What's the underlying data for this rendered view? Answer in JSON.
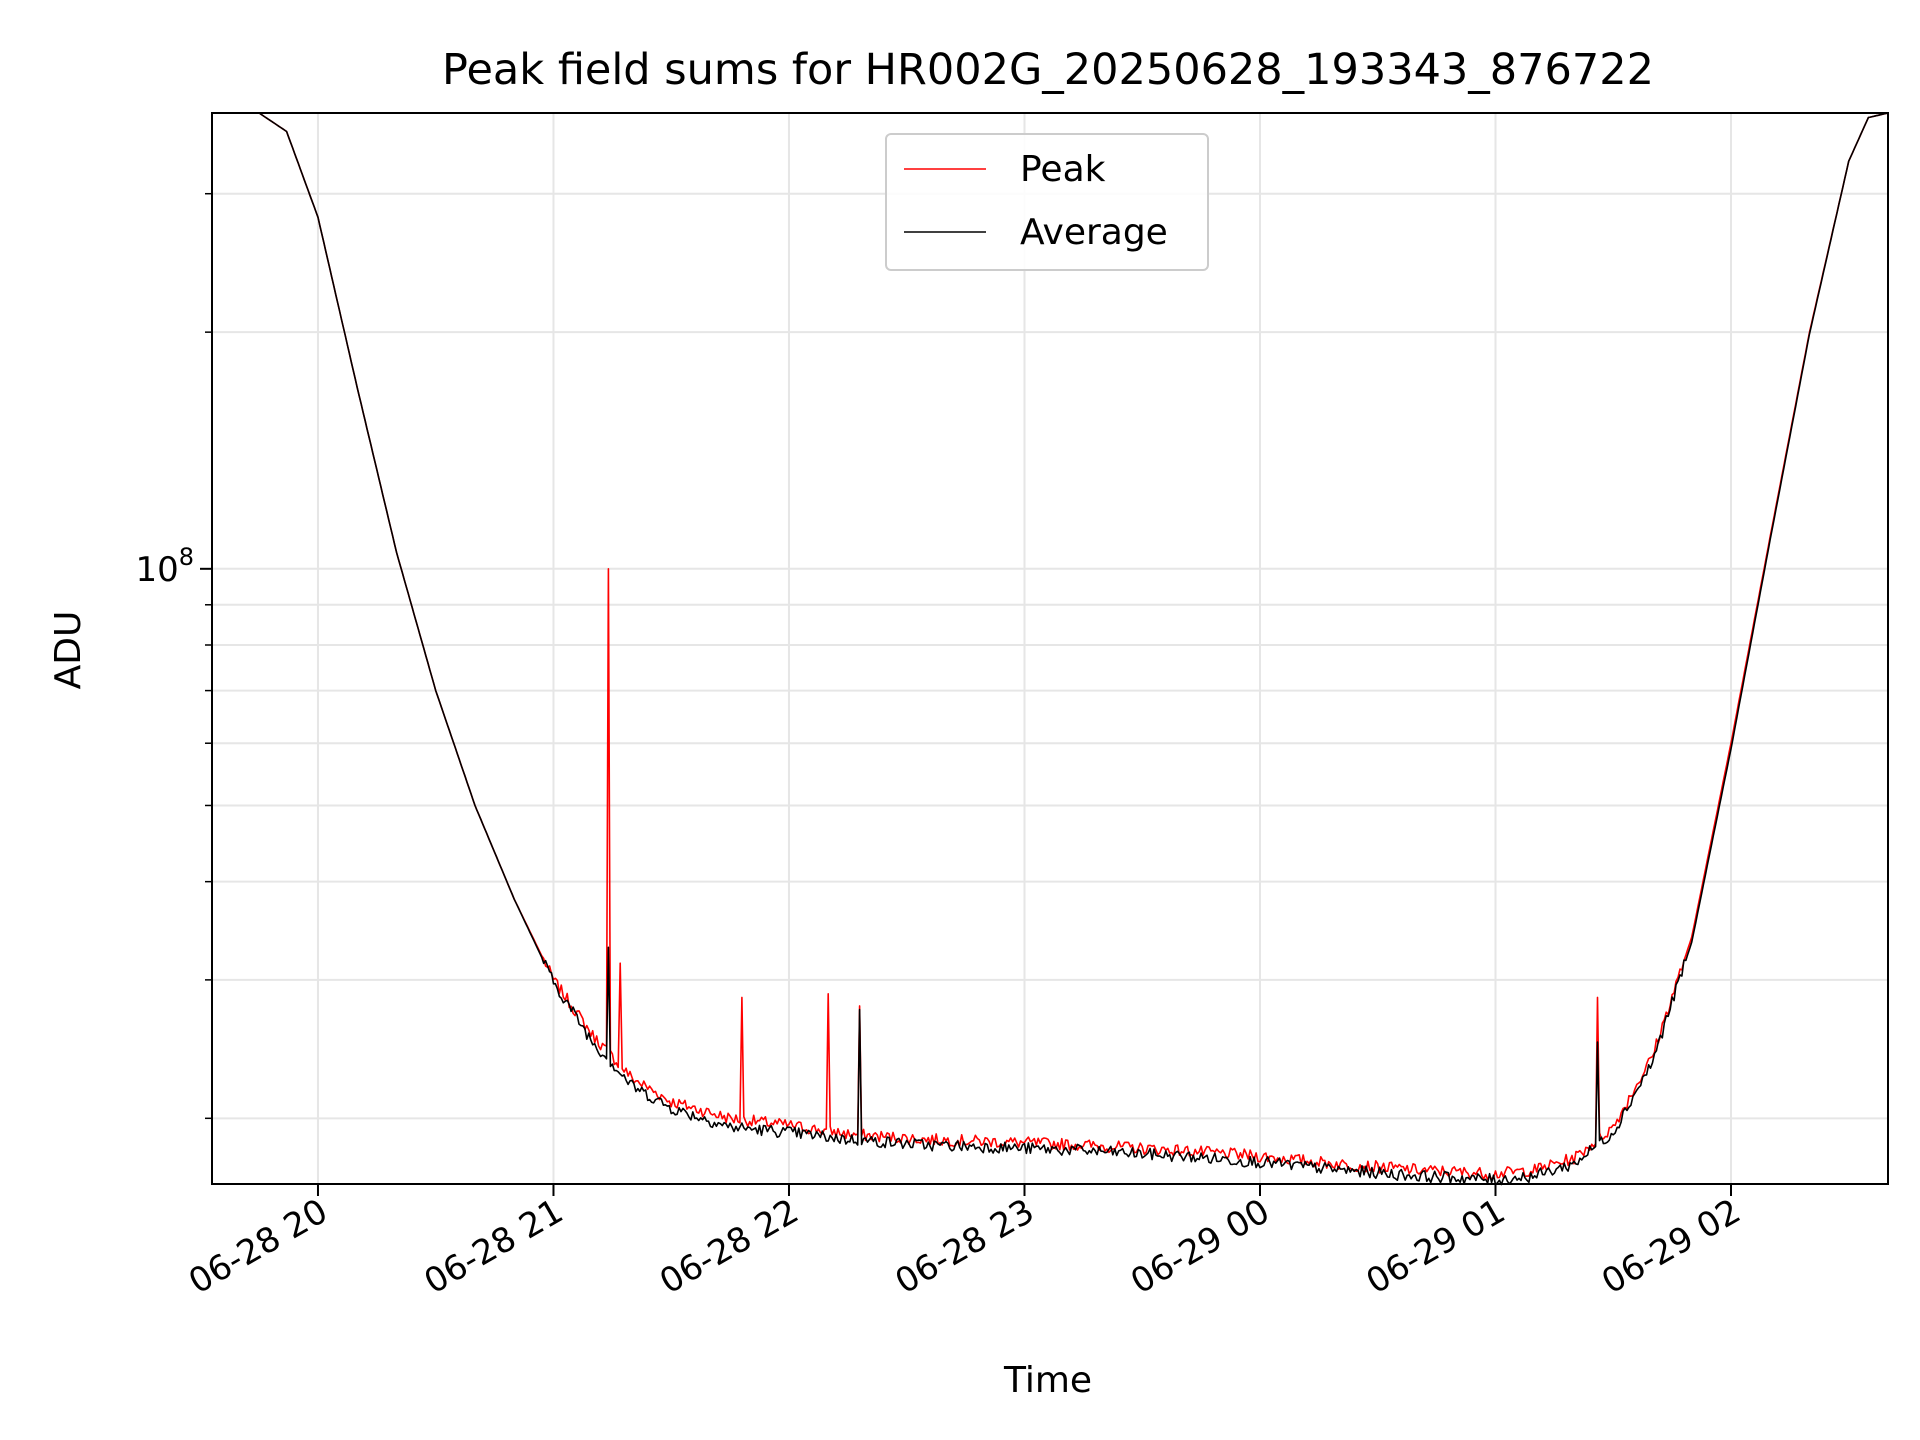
{
  "chart_data": {
    "type": "line",
    "title": "Peak field sums for HR002G_20250628_193343_876722",
    "xlabel": "Time",
    "ylabel": "ADU",
    "y_scale": "log",
    "ylim": [
      16500000,
      380000000
    ],
    "xlim": [
      "2025-06-28 19:33",
      "2025-06-29 02:40"
    ],
    "x_ticks": [
      "06-28 20",
      "06-28 21",
      "06-28 22",
      "06-28 23",
      "06-29 00",
      "06-29 01",
      "06-29 02"
    ],
    "y_ticks": [
      {
        "base": "10",
        "exp": "8",
        "value": 100000000
      }
    ],
    "grid": true,
    "legend_position": "top-center",
    "colors": {
      "Peak": "#ff0000",
      "Average": "#000000"
    },
    "series": [
      {
        "name": "Peak",
        "points": [
          [
            "2025-06-28 19:45",
            380000000
          ],
          [
            "2025-06-28 19:52",
            360000000
          ],
          [
            "2025-06-28 20:00",
            280000000
          ],
          [
            "2025-06-28 20:10",
            170000000
          ],
          [
            "2025-06-28 20:20",
            105000000
          ],
          [
            "2025-06-28 20:30",
            70000000
          ],
          [
            "2025-06-28 20:40",
            50000000
          ],
          [
            "2025-06-28 20:50",
            38000000
          ],
          [
            "2025-06-28 21:00",
            30000000
          ],
          [
            "2025-06-28 21:10",
            25500000
          ],
          [
            "2025-06-28 21:20",
            22500000
          ],
          [
            "2025-06-28 21:30",
            21000000
          ],
          [
            "2025-06-28 21:45",
            20000000
          ],
          [
            "2025-06-28 22:00",
            19600000
          ],
          [
            "2025-06-28 22:15",
            19100000
          ],
          [
            "2025-06-28 22:35",
            18800000
          ],
          [
            "2025-06-28 22:50",
            18700000
          ],
          [
            "2025-06-28 23:15",
            18500000
          ],
          [
            "2025-06-28 23:40",
            18200000
          ],
          [
            "2025-06-29 00:00",
            17900000
          ],
          [
            "2025-06-29 00:20",
            17500000
          ],
          [
            "2025-06-29 00:40",
            17200000
          ],
          [
            "2025-06-29 01:00",
            17000000
          ],
          [
            "2025-06-29 01:10",
            17200000
          ],
          [
            "2025-06-29 01:20",
            17800000
          ],
          [
            "2025-06-29 01:30",
            19500000
          ],
          [
            "2025-06-29 01:40",
            24000000
          ],
          [
            "2025-06-29 01:50",
            34000000
          ],
          [
            "2025-06-29 02:00",
            60000000
          ],
          [
            "2025-06-29 02:10",
            110000000
          ],
          [
            "2025-06-29 02:20",
            200000000
          ],
          [
            "2025-06-29 02:30",
            330000000
          ],
          [
            "2025-06-29 02:35",
            375000000
          ],
          [
            "2025-06-29 02:40",
            380000000
          ]
        ],
        "spikes": [
          [
            "2025-06-28 21:14",
            100000000
          ],
          [
            "2025-06-28 21:17",
            31500000
          ],
          [
            "2025-06-28 21:48",
            28500000
          ],
          [
            "2025-06-28 22:10",
            28800000
          ],
          [
            "2025-06-28 22:18",
            27800000
          ],
          [
            "2025-06-29 01:26",
            28500000
          ]
        ]
      },
      {
        "name": "Average",
        "points": [
          [
            "2025-06-28 19:45",
            380000000
          ],
          [
            "2025-06-28 19:52",
            360000000
          ],
          [
            "2025-06-28 20:00",
            280000000
          ],
          [
            "2025-06-28 20:10",
            170000000
          ],
          [
            "2025-06-28 20:20",
            105000000
          ],
          [
            "2025-06-28 20:30",
            70000000
          ],
          [
            "2025-06-28 20:40",
            50000000
          ],
          [
            "2025-06-28 20:50",
            38000000
          ],
          [
            "2025-06-28 21:00",
            29800000
          ],
          [
            "2025-06-28 21:10",
            25000000
          ],
          [
            "2025-06-28 21:20",
            22000000
          ],
          [
            "2025-06-28 21:30",
            20600000
          ],
          [
            "2025-06-28 21:45",
            19500000
          ],
          [
            "2025-06-28 22:00",
            19200000
          ],
          [
            "2025-06-28 22:15",
            18800000
          ],
          [
            "2025-06-28 22:35",
            18500000
          ],
          [
            "2025-06-28 22:50",
            18400000
          ],
          [
            "2025-06-28 23:15",
            18200000
          ],
          [
            "2025-06-28 23:40",
            17900000
          ],
          [
            "2025-06-29 00:00",
            17600000
          ],
          [
            "2025-06-29 00:20",
            17200000
          ],
          [
            "2025-06-29 00:40",
            16900000
          ],
          [
            "2025-06-29 01:00",
            16700000
          ],
          [
            "2025-06-29 01:10",
            16900000
          ],
          [
            "2025-06-29 01:20",
            17500000
          ],
          [
            "2025-06-29 01:30",
            19200000
          ],
          [
            "2025-06-29 01:40",
            23600000
          ],
          [
            "2025-06-29 01:50",
            33500000
          ],
          [
            "2025-06-29 02:00",
            59000000
          ],
          [
            "2025-06-29 02:10",
            109000000
          ],
          [
            "2025-06-29 02:20",
            199000000
          ],
          [
            "2025-06-29 02:30",
            330000000
          ],
          [
            "2025-06-29 02:35",
            375000000
          ],
          [
            "2025-06-29 02:40",
            380000000
          ]
        ],
        "spikes": [
          [
            "2025-06-28 21:14",
            33000000
          ],
          [
            "2025-06-28 22:18",
            27500000
          ],
          [
            "2025-06-29 01:26",
            25000000
          ]
        ]
      }
    ]
  }
}
